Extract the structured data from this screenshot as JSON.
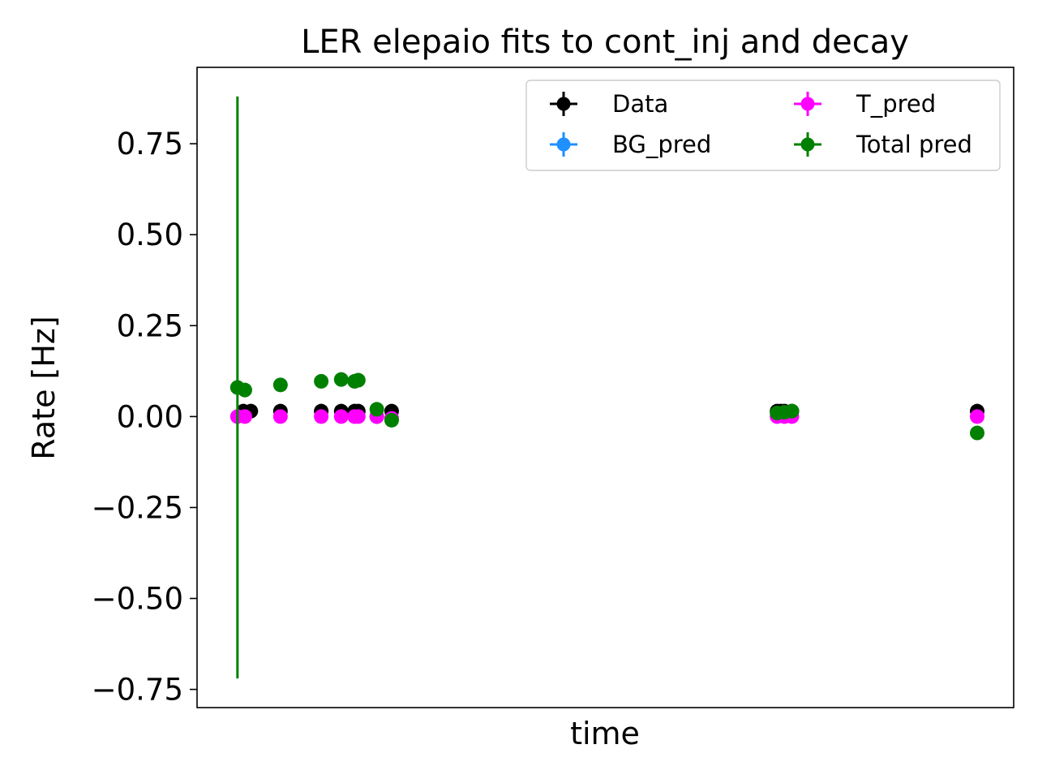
{
  "chart_data": {
    "type": "scatter",
    "title": "LER elepaio fits to cont_inj and decay",
    "xlabel": "time",
    "ylabel": "Rate [Hz]",
    "x_ticks_shown": false,
    "ylim": [
      -0.8,
      0.96
    ],
    "yticks": [
      -0.75,
      -0.5,
      -0.25,
      0.0,
      0.25,
      0.5,
      0.75
    ],
    "ytick_labels": [
      "−0.75",
      "−0.50",
      "−0.25",
      "0.00",
      "0.25",
      "0.50",
      "0.75"
    ],
    "xlim": [
      0,
      100
    ],
    "legend": {
      "placement": "top-right",
      "columns": 2,
      "order": [
        "Data",
        "BG_pred",
        "T_pred",
        "Total pred"
      ]
    },
    "grid": false,
    "series": [
      {
        "name": "Data",
        "color": "#000000",
        "x": [
          1,
          2,
          6,
          11.5,
          14.2,
          16,
          16.5,
          19,
          21,
          73,
          73.5,
          74,
          75,
          100
        ],
        "y": [
          0.015,
          0.015,
          0.015,
          0.015,
          0.015,
          0.015,
          0.015,
          0.0,
          0.015,
          0.015,
          0.015,
          0.015,
          0.015,
          0.015
        ],
        "yerr": [
          0,
          0,
          0,
          0,
          0,
          0,
          0,
          0,
          0,
          0,
          0,
          0,
          0,
          0
        ]
      },
      {
        "name": "BG_pred",
        "color": "#1e90ff",
        "x": [],
        "y": [],
        "yerr": []
      },
      {
        "name": "T_pred",
        "color": "#ff00ff",
        "x": [
          0.2,
          1.2,
          6,
          11.5,
          14.2,
          16,
          16.5,
          19,
          21,
          73,
          74,
          75,
          100
        ],
        "y": [
          0.0,
          0.0,
          0.0,
          0.0,
          0.0,
          0.0,
          0.0,
          0.0,
          -0.005,
          0.0,
          0.0,
          0.0,
          0.0
        ],
        "yerr": [
          0,
          0,
          0,
          0,
          0,
          0,
          0,
          0,
          0,
          0,
          0,
          0,
          0
        ]
      },
      {
        "name": "Total pred",
        "color": "#008000",
        "x": [
          0.2,
          1.2,
          6,
          11.5,
          14.2,
          16,
          16.5,
          19,
          21,
          73,
          74,
          75,
          100
        ],
        "y": [
          0.08,
          0.073,
          0.087,
          0.097,
          0.102,
          0.097,
          0.1,
          0.02,
          -0.01,
          0.01,
          0.012,
          0.015,
          -0.045
        ],
        "yerr": [
          0.8,
          0,
          0,
          0,
          0,
          0,
          0,
          0,
          0,
          0,
          0,
          0,
          0
        ]
      }
    ]
  }
}
